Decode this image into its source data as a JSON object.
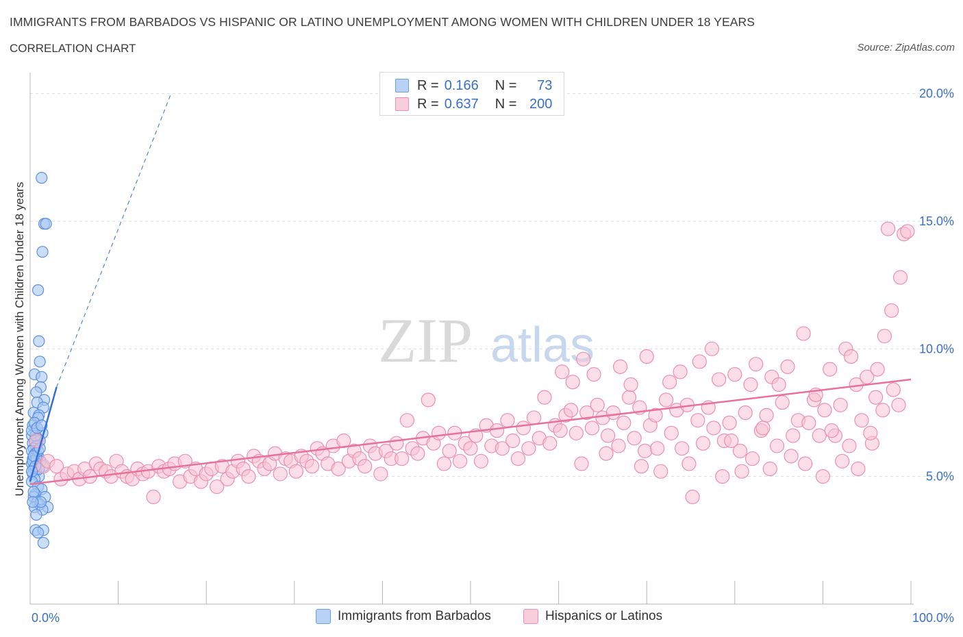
{
  "header": {
    "title": "IMMIGRANTS FROM BARBADOS VS HISPANIC OR LATINO UNEMPLOYMENT AMONG WOMEN WITH CHILDREN UNDER 18 YEARS",
    "subtitle": "CORRELATION CHART",
    "source": "Source: ZipAtlas.com"
  },
  "watermark": {
    "zip": "ZIP",
    "atlas": "atlas"
  },
  "legend_top": {
    "rows": [
      {
        "r_key": "R =",
        "r_val": "0.166",
        "n_key": "N =",
        "n_val": "73",
        "color": "#6f9fe8"
      },
      {
        "r_key": "R =",
        "r_val": "0.637",
        "n_key": "N =",
        "n_val": "200",
        "color": "#ee90ad"
      }
    ]
  },
  "legend_bottom": [
    {
      "label": "Immigrants from Barbados",
      "color": "#6f9fe8"
    },
    {
      "label": "Hispanics or Latinos",
      "color": "#ee90ad"
    }
  ],
  "colors": {
    "blue_fill": "#a9c8f3",
    "blue_stroke": "#5b8fe0",
    "blue_line": "#2f6fd6",
    "pink_fill": "#f7c3d3",
    "pink_stroke": "#ec8fae",
    "pink_line": "#e8719a",
    "grid": "#dddddd",
    "axis_label": "#3a6fc9"
  },
  "chart_data": {
    "type": "scatter",
    "title": "IMMIGRANTS FROM BARBADOS VS HISPANIC OR LATINO UNEMPLOYMENT AMONG WOMEN WITH CHILDREN UNDER 18 YEARS",
    "xlabel": "",
    "ylabel": "Unemployment Among Women with Children Under 18 years",
    "xlim": [
      0,
      100
    ],
    "ylim": [
      0,
      20.5
    ],
    "x_tick_labels": [
      "0.0%",
      "100.0%"
    ],
    "y_ticks": [
      5,
      10,
      15,
      20
    ],
    "y_tick_labels": [
      "5.0%",
      "10.0%",
      "15.0%",
      "20.0%"
    ],
    "grid": "horizontal dashed",
    "legend_position": "top-center and bottom",
    "series": [
      {
        "name": "Immigrants from Barbados",
        "stats": {
          "R": 0.166,
          "N": 73
        },
        "trend": {
          "type": "solid then dashed",
          "x": [
            0,
            3
          ],
          "y": [
            4.8,
            8.5
          ],
          "dashed_to": [
            16,
            20
          ]
        },
        "points": [
          [
            1.3,
            16.7
          ],
          [
            1.6,
            14.9
          ],
          [
            1.8,
            14.9
          ],
          [
            1.4,
            13.8
          ],
          [
            0.9,
            12.3
          ],
          [
            1.0,
            10.3
          ],
          [
            1.1,
            9.5
          ],
          [
            0.5,
            9.0
          ],
          [
            1.3,
            8.9
          ],
          [
            1.2,
            8.5
          ],
          [
            0.7,
            8.3
          ],
          [
            1.6,
            8.0
          ],
          [
            0.8,
            7.9
          ],
          [
            1.5,
            7.7
          ],
          [
            0.4,
            7.5
          ],
          [
            1.0,
            7.4
          ],
          [
            0.9,
            7.3
          ],
          [
            0.3,
            7.0
          ],
          [
            0.6,
            6.8
          ],
          [
            1.4,
            6.7
          ],
          [
            0.2,
            6.6
          ],
          [
            0.8,
            6.5
          ],
          [
            0.5,
            6.4
          ],
          [
            1.1,
            6.4
          ],
          [
            0.3,
            6.3
          ],
          [
            0.7,
            6.2
          ],
          [
            0.4,
            6.1
          ],
          [
            0.2,
            6.0
          ],
          [
            0.6,
            5.9
          ],
          [
            0.9,
            5.8
          ],
          [
            0.3,
            5.7
          ],
          [
            0.5,
            5.6
          ],
          [
            1.2,
            5.6
          ],
          [
            0.8,
            5.5
          ],
          [
            0.2,
            5.5
          ],
          [
            1.5,
            5.4
          ],
          [
            0.4,
            5.3
          ],
          [
            0.7,
            5.2
          ],
          [
            0.3,
            5.1
          ],
          [
            1.0,
            5.0
          ],
          [
            0.5,
            4.9
          ],
          [
            0.2,
            4.8
          ],
          [
            0.9,
            4.6
          ],
          [
            1.3,
            4.5
          ],
          [
            0.6,
            4.3
          ],
          [
            0.4,
            4.2
          ],
          [
            1.7,
            4.2
          ],
          [
            0.8,
            4.0
          ],
          [
            1.1,
            3.9
          ],
          [
            0.5,
            3.8
          ],
          [
            2.0,
            3.8
          ],
          [
            1.4,
            3.7
          ],
          [
            0.7,
            3.5
          ],
          [
            0.6,
            2.9
          ],
          [
            1.5,
            2.9
          ],
          [
            0.9,
            2.8
          ],
          [
            1.5,
            2.4
          ],
          [
            0.3,
            5.6
          ],
          [
            0.6,
            6.6
          ],
          [
            0.4,
            4.4
          ],
          [
            1.2,
            4.0
          ],
          [
            0.2,
            6.8
          ],
          [
            0.7,
            5.7
          ],
          [
            0.9,
            6.0
          ],
          [
            0.3,
            4.0
          ],
          [
            1.0,
            5.3
          ],
          [
            0.5,
            7.1
          ],
          [
            0.8,
            6.9
          ],
          [
            0.4,
            5.8
          ],
          [
            0.6,
            5.4
          ],
          [
            1.1,
            6.1
          ],
          [
            0.2,
            5.2
          ],
          [
            1.3,
            7.0
          ]
        ]
      },
      {
        "name": "Hispanics or Latinos",
        "stats": {
          "R": 0.637,
          "N": 200
        },
        "trend": {
          "type": "solid",
          "x": [
            0,
            100
          ],
          "y": [
            4.7,
            8.8
          ]
        },
        "points": [
          [
            0.7,
            6.4
          ],
          [
            1.5,
            5.4
          ],
          [
            2.0,
            5.6
          ],
          [
            3.0,
            5.4
          ],
          [
            3.5,
            4.9
          ],
          [
            4.2,
            5.1
          ],
          [
            5.0,
            5.2
          ],
          [
            5.6,
            4.9
          ],
          [
            6.2,
            5.3
          ],
          [
            6.8,
            5.0
          ],
          [
            7.5,
            5.5
          ],
          [
            8.0,
            5.3
          ],
          [
            8.6,
            5.2
          ],
          [
            9.2,
            5.0
          ],
          [
            9.8,
            5.6
          ],
          [
            10.4,
            5.2
          ],
          [
            11.0,
            5.0
          ],
          [
            11.6,
            4.9
          ],
          [
            12.2,
            5.3
          ],
          [
            12.8,
            5.1
          ],
          [
            13.4,
            5.2
          ],
          [
            14.0,
            4.2
          ],
          [
            14.6,
            5.4
          ],
          [
            15.2,
            5.2
          ],
          [
            15.8,
            5.3
          ],
          [
            16.4,
            5.5
          ],
          [
            17.0,
            4.8
          ],
          [
            17.6,
            5.6
          ],
          [
            18.2,
            5.0
          ],
          [
            18.8,
            5.3
          ],
          [
            19.4,
            4.8
          ],
          [
            20.0,
            5.1
          ],
          [
            20.6,
            5.3
          ],
          [
            21.2,
            4.6
          ],
          [
            21.8,
            5.4
          ],
          [
            22.4,
            4.9
          ],
          [
            23.0,
            5.2
          ],
          [
            23.6,
            5.6
          ],
          [
            24.2,
            5.3
          ],
          [
            24.8,
            5.0
          ],
          [
            25.4,
            5.8
          ],
          [
            26.0,
            5.6
          ],
          [
            26.6,
            5.3
          ],
          [
            27.2,
            5.5
          ],
          [
            27.8,
            5.9
          ],
          [
            28.4,
            5.1
          ],
          [
            29.0,
            5.7
          ],
          [
            29.6,
            5.6
          ],
          [
            30.2,
            5.2
          ],
          [
            30.8,
            5.8
          ],
          [
            31.4,
            5.6
          ],
          [
            32.0,
            5.4
          ],
          [
            32.6,
            6.1
          ],
          [
            33.2,
            5.9
          ],
          [
            33.8,
            5.5
          ],
          [
            34.4,
            6.2
          ],
          [
            35.0,
            5.3
          ],
          [
            35.6,
            6.4
          ],
          [
            36.2,
            5.6
          ],
          [
            36.8,
            6.0
          ],
          [
            37.4,
            5.7
          ],
          [
            38.0,
            5.4
          ],
          [
            38.6,
            6.2
          ],
          [
            39.2,
            5.9
          ],
          [
            39.8,
            5.1
          ],
          [
            40.4,
            6.0
          ],
          [
            41.0,
            5.7
          ],
          [
            41.6,
            6.3
          ],
          [
            42.2,
            5.7
          ],
          [
            42.8,
            7.2
          ],
          [
            43.4,
            6.1
          ],
          [
            44.0,
            5.9
          ],
          [
            44.6,
            6.5
          ],
          [
            45.2,
            8.0
          ],
          [
            45.8,
            6.3
          ],
          [
            46.4,
            6.7
          ],
          [
            47.0,
            5.5
          ],
          [
            47.6,
            6.0
          ],
          [
            48.2,
            6.7
          ],
          [
            48.8,
            5.6
          ],
          [
            49.4,
            6.3
          ],
          [
            50.0,
            6.1
          ],
          [
            50.6,
            6.6
          ],
          [
            51.2,
            5.6
          ],
          [
            51.8,
            7.0
          ],
          [
            52.4,
            6.2
          ],
          [
            53.0,
            6.8
          ],
          [
            53.6,
            6.1
          ],
          [
            54.2,
            7.2
          ],
          [
            54.8,
            6.4
          ],
          [
            55.4,
            5.7
          ],
          [
            56.0,
            6.9
          ],
          [
            56.6,
            6.1
          ],
          [
            57.2,
            7.3
          ],
          [
            57.8,
            6.5
          ],
          [
            58.4,
            8.1
          ],
          [
            59.0,
            6.3
          ],
          [
            59.6,
            7.0
          ],
          [
            60.2,
            6.8
          ],
          [
            60.8,
            7.4
          ],
          [
            61.4,
            7.6
          ],
          [
            62.0,
            6.7
          ],
          [
            62.6,
            5.5
          ],
          [
            63.2,
            7.5
          ],
          [
            63.8,
            6.9
          ],
          [
            64.4,
            7.8
          ],
          [
            65.0,
            7.3
          ],
          [
            65.6,
            6.6
          ],
          [
            66.2,
            7.5
          ],
          [
            66.8,
            6.2
          ],
          [
            67.4,
            7.1
          ],
          [
            68.0,
            8.1
          ],
          [
            68.6,
            6.5
          ],
          [
            69.2,
            7.7
          ],
          [
            69.8,
            6.0
          ],
          [
            70.4,
            7.0
          ],
          [
            71.0,
            7.4
          ],
          [
            71.6,
            5.2
          ],
          [
            72.2,
            8.0
          ],
          [
            72.8,
            6.7
          ],
          [
            73.4,
            7.6
          ],
          [
            74.0,
            6.1
          ],
          [
            74.6,
            7.8
          ],
          [
            75.2,
            4.2
          ],
          [
            75.8,
            7.2
          ],
          [
            76.4,
            6.3
          ],
          [
            77.0,
            7.7
          ],
          [
            77.6,
            6.9
          ],
          [
            78.2,
            8.8
          ],
          [
            78.8,
            6.4
          ],
          [
            79.4,
            7.1
          ],
          [
            80.0,
            9.0
          ],
          [
            80.6,
            6.0
          ],
          [
            81.2,
            7.5
          ],
          [
            81.8,
            8.6
          ],
          [
            82.4,
            9.4
          ],
          [
            83.0,
            6.8
          ],
          [
            83.6,
            7.4
          ],
          [
            84.2,
            8.9
          ],
          [
            84.8,
            6.2
          ],
          [
            85.4,
            7.9
          ],
          [
            86.0,
            9.3
          ],
          [
            86.6,
            6.6
          ],
          [
            87.2,
            7.2
          ],
          [
            87.8,
            10.6
          ],
          [
            88.4,
            7.1
          ],
          [
            89.0,
            8.0
          ],
          [
            89.6,
            6.6
          ],
          [
            90.2,
            7.6
          ],
          [
            90.8,
            9.2
          ],
          [
            91.4,
            6.6
          ],
          [
            92.0,
            7.8
          ],
          [
            92.6,
            10.0
          ],
          [
            93.2,
            9.7
          ],
          [
            93.8,
            8.6
          ],
          [
            94.4,
            7.2
          ],
          [
            95.0,
            8.9
          ],
          [
            95.6,
            6.3
          ],
          [
            96.2,
            9.2
          ],
          [
            96.8,
            7.6
          ],
          [
            97.4,
            14.7
          ],
          [
            98.0,
            8.4
          ],
          [
            98.6,
            7.8
          ],
          [
            99.2,
            14.5
          ],
          [
            99.6,
            14.6
          ],
          [
            98.8,
            12.8
          ],
          [
            97.8,
            11.5
          ],
          [
            97.0,
            10.5
          ],
          [
            96.0,
            8.1
          ],
          [
            95.4,
            6.7
          ],
          [
            94.0,
            5.3
          ],
          [
            93.0,
            6.2
          ],
          [
            92.2,
            5.6
          ],
          [
            91.0,
            6.8
          ],
          [
            90.0,
            5.0
          ],
          [
            89.2,
            8.2
          ],
          [
            88.0,
            5.5
          ],
          [
            86.4,
            5.8
          ],
          [
            85.0,
            8.6
          ],
          [
            84.0,
            5.3
          ],
          [
            83.2,
            6.9
          ],
          [
            82.0,
            5.7
          ],
          [
            80.8,
            5.2
          ],
          [
            79.6,
            6.4
          ],
          [
            78.6,
            5.0
          ],
          [
            77.4,
            10.0
          ],
          [
            76.0,
            9.5
          ],
          [
            74.8,
            5.5
          ],
          [
            73.8,
            9.1
          ],
          [
            72.6,
            8.7
          ],
          [
            71.2,
            6.1
          ],
          [
            70.0,
            9.7
          ],
          [
            69.4,
            5.4
          ],
          [
            68.2,
            8.6
          ],
          [
            67.0,
            9.3
          ],
          [
            65.4,
            5.9
          ],
          [
            64.0,
            9.0
          ],
          [
            62.8,
            9.6
          ],
          [
            61.6,
            8.7
          ],
          [
            60.4,
            9.1
          ]
        ]
      }
    ]
  }
}
